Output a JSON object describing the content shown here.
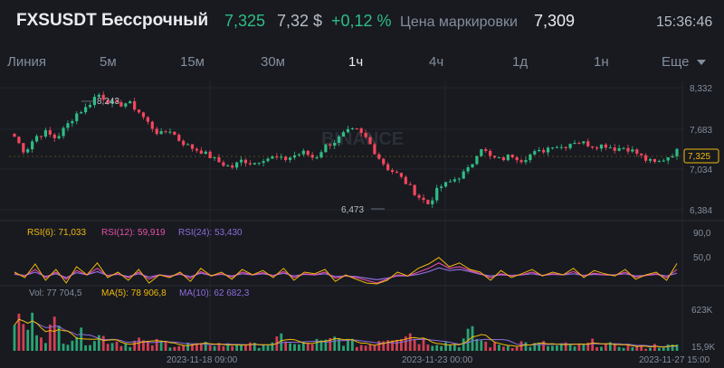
{
  "header": {
    "symbol": "FXSUSDT Бессрочный",
    "last_price": "7,325",
    "usd_price": "7,32 $",
    "change": "+0,12 %",
    "mark_price_label": "Цена маркировки",
    "mark_price": "7,309",
    "clock": "15:36:46"
  },
  "colors": {
    "up": "#2ebd85",
    "down": "#f6465d",
    "bg": "#181a20",
    "rsi6": "#f0b90b",
    "rsi12": "#e84fa9",
    "rsi24": "#8d6cdb",
    "ma5": "#f0b90b",
    "ma10": "#8d6cdb"
  },
  "tabs": [
    {
      "label": "Линия",
      "active": false
    },
    {
      "label": "5м",
      "active": false
    },
    {
      "label": "15м",
      "active": false
    },
    {
      "label": "30м",
      "active": false
    },
    {
      "label": "1ч",
      "active": true
    },
    {
      "label": "4ч",
      "active": false
    },
    {
      "label": "1д",
      "active": false
    },
    {
      "label": "1н",
      "active": false
    },
    {
      "label": "Еще",
      "active": false
    }
  ],
  "price_panel": {
    "y_ticks": [
      "8,332",
      "7,683",
      "7,034",
      "6,384"
    ],
    "y_tick_values": [
      8.332,
      7.683,
      7.034,
      6.384
    ],
    "current_price_tag": "7,325",
    "high_label": "8,243",
    "low_label": "6,473",
    "watermark": "BINANCE"
  },
  "rsi_panel": {
    "labels": [
      "RSI(6): 71,033",
      "RSI(12): 59,919",
      "RSI(24): 53,430"
    ],
    "y_ticks": [
      "90,0",
      "50,0"
    ]
  },
  "volume_panel": {
    "labels": [
      "Vol: 77 704,5",
      "MA(5): 78 906,8",
      "MA(10): 62 682,3"
    ],
    "y_ticks": [
      "623K",
      "15,9K"
    ]
  },
  "x_axis": {
    "labels": [
      "2023-11-18 09:00",
      "2023-11-23 00:00",
      "2023-11-27 15:00"
    ]
  },
  "chart_data": {
    "type": "candlestick",
    "price_anchors": [
      7.55,
      7.3,
      7.55,
      7.62,
      7.52,
      7.72,
      7.92,
      8.02,
      8.24,
      8.12,
      8.05,
      8.1,
      7.95,
      7.75,
      7.58,
      7.66,
      7.48,
      7.38,
      7.32,
      7.22,
      7.12,
      7.06,
      7.18,
      7.12,
      7.2,
      7.22,
      7.18,
      7.25,
      7.3,
      7.2,
      7.4,
      7.48,
      7.62,
      7.66,
      7.52,
      7.26,
      7.05,
      6.95,
      6.78,
      6.6,
      6.47,
      6.74,
      6.82,
      6.92,
      7.05,
      7.4,
      7.22,
      7.18,
      7.26,
      7.18,
      7.28,
      7.32,
      7.42,
      7.38,
      7.48,
      7.45,
      7.4,
      7.42,
      7.36,
      7.38,
      7.3,
      7.18,
      7.12,
      7.22,
      7.32
    ],
    "rsi6": [
      55,
      45,
      70,
      40,
      60,
      35,
      65,
      50,
      72,
      45,
      55,
      40,
      60,
      35,
      50,
      45,
      55,
      38,
      62,
      48,
      55,
      42,
      60,
      50,
      58,
      45,
      62,
      40,
      55,
      52,
      60,
      38,
      50,
      42,
      35,
      25,
      40,
      55,
      48,
      62,
      70,
      82,
      65,
      72,
      60,
      55,
      40,
      58,
      45,
      52,
      60,
      48,
      55,
      50,
      62,
      45,
      58,
      52,
      48,
      60,
      42,
      50,
      55,
      40,
      71
    ],
    "rsi12": [
      52,
      48,
      60,
      45,
      55,
      42,
      58,
      50,
      62,
      48,
      52,
      45,
      55,
      42,
      50,
      47,
      52,
      44,
      56,
      48,
      52,
      46,
      55,
      50,
      54,
      48,
      56,
      45,
      52,
      50,
      55,
      44,
      48,
      45,
      40,
      35,
      42,
      50,
      48,
      55,
      62,
      72,
      62,
      65,
      58,
      52,
      45,
      52,
      48,
      50,
      55,
      49,
      52,
      50,
      56,
      48,
      53,
      50,
      49,
      55,
      46,
      49,
      52,
      45,
      60
    ],
    "rsi24": [
      51,
      49,
      55,
      47,
      52,
      45,
      54,
      50,
      56,
      49,
      51,
      47,
      52,
      46,
      50,
      48,
      51,
      47,
      53,
      49,
      51,
      48,
      52,
      50,
      52,
      49,
      53,
      48,
      51,
      50,
      52,
      47,
      48,
      47,
      44,
      41,
      44,
      48,
      48,
      51,
      56,
      63,
      58,
      60,
      56,
      51,
      48,
      50,
      49,
      50,
      52,
      49,
      51,
      50,
      52,
      49,
      51,
      50,
      50,
      52,
      48,
      49,
      51,
      48,
      53
    ],
    "volume_anchors": [
      600,
      350,
      500,
      280,
      420,
      200,
      300,
      180,
      250,
      200,
      150,
      120,
      180,
      100,
      150,
      120,
      90,
      110,
      80,
      130,
      100,
      90,
      140,
      80,
      120,
      100,
      260,
      90,
      110,
      150,
      130,
      200,
      160,
      110,
      90,
      180,
      240,
      300,
      320,
      200,
      160,
      150,
      120,
      110,
      300,
      180,
      90,
      100,
      80,
      140,
      90,
      120,
      70,
      100,
      80,
      90,
      140,
      110,
      80,
      95,
      70,
      60,
      90,
      75,
      78
    ],
    "rsi_ylim": [
      0,
      100
    ],
    "volume_ylim": [
      0,
      700
    ]
  }
}
